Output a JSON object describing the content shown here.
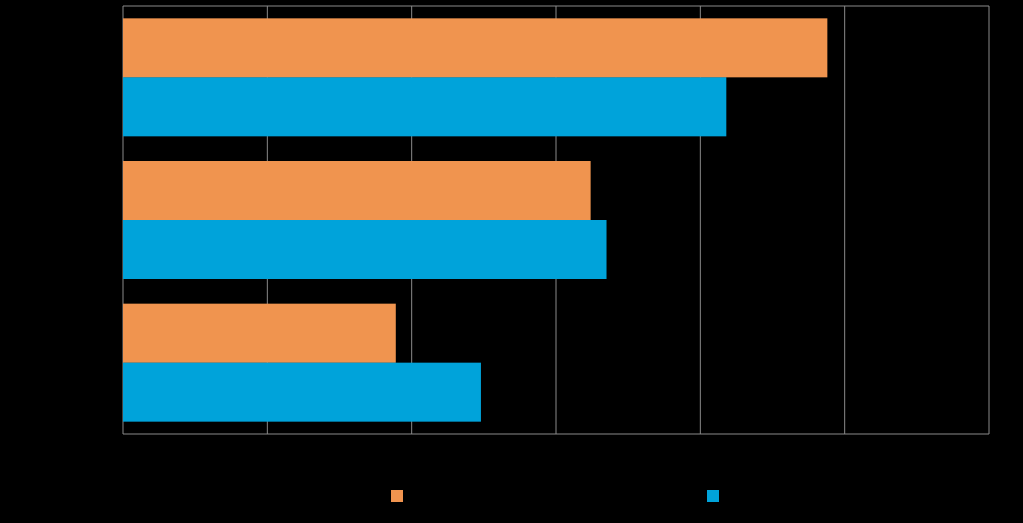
{
  "chart_data": {
    "type": "hbar",
    "categories": [
      null,
      null,
      null
    ],
    "series": [
      {
        "color": "#f0944f",
        "values": [
          4.88,
          3.24,
          1.89
        ]
      },
      {
        "color": "#00a3da",
        "values": [
          4.18,
          3.35,
          2.48
        ]
      }
    ],
    "xlim": [
      0,
      6
    ],
    "xticks": [
      0,
      1,
      2,
      3,
      4,
      5,
      6
    ],
    "grid": true
  }
}
